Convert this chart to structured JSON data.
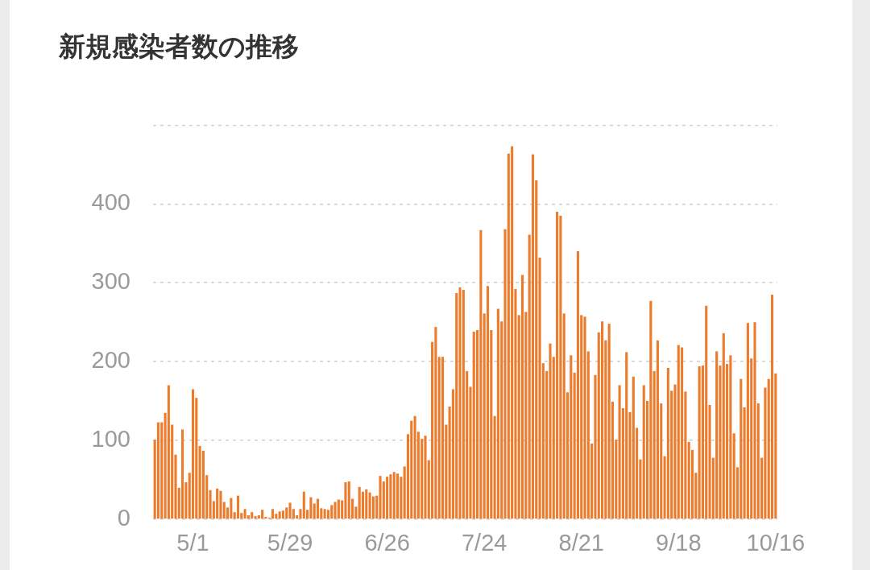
{
  "chart_data": {
    "type": "bar",
    "title": "新規感染者数の推移",
    "categories": [
      null,
      null,
      null,
      null,
      null,
      null,
      null,
      null,
      null,
      null,
      null,
      "5/1",
      null,
      null,
      null,
      null,
      null,
      null,
      null,
      null,
      null,
      null,
      null,
      null,
      null,
      null,
      null,
      null,
      null,
      null,
      null,
      null,
      null,
      null,
      null,
      null,
      null,
      null,
      null,
      "5/29",
      null,
      null,
      null,
      null,
      null,
      null,
      null,
      null,
      null,
      null,
      null,
      null,
      null,
      null,
      null,
      null,
      null,
      null,
      null,
      null,
      null,
      null,
      null,
      null,
      null,
      null,
      null,
      "6/26",
      null,
      null,
      null,
      null,
      null,
      null,
      null,
      null,
      null,
      null,
      null,
      null,
      null,
      null,
      null,
      null,
      null,
      null,
      null,
      null,
      null,
      null,
      null,
      null,
      null,
      null,
      null,
      "7/24",
      null,
      null,
      null,
      null,
      null,
      null,
      null,
      null,
      null,
      null,
      null,
      null,
      null,
      null,
      null,
      null,
      null,
      null,
      null,
      null,
      null,
      null,
      null,
      null,
      null,
      null,
      null,
      "8/21",
      null,
      null,
      null,
      null,
      null,
      null,
      null,
      null,
      null,
      null,
      null,
      null,
      null,
      null,
      null,
      null,
      null,
      null,
      null,
      null,
      null,
      null,
      null,
      null,
      null,
      null,
      null,
      "9/18",
      null,
      null,
      null,
      null,
      null,
      null,
      null,
      null,
      null,
      null,
      null,
      null,
      null,
      null,
      null,
      null,
      null,
      null,
      null,
      null,
      null,
      null,
      null,
      null,
      null,
      null,
      null,
      "10/16"
    ],
    "values": [
      101,
      123,
      123,
      135,
      170,
      120,
      82,
      40,
      114,
      47,
      59,
      165,
      154,
      93,
      87,
      56,
      37,
      23,
      39,
      36,
      22,
      15,
      27,
      9,
      30,
      8,
      13,
      5,
      9,
      4,
      5,
      12,
      3,
      2,
      13,
      7,
      10,
      11,
      15,
      21,
      13,
      5,
      13,
      35,
      12,
      28,
      20,
      26,
      14,
      13,
      12,
      18,
      22,
      25,
      24,
      47,
      48,
      26,
      16,
      41,
      35,
      38,
      34,
      29,
      30,
      55,
      48,
      54,
      57,
      60,
      58,
      54,
      67,
      108,
      125,
      131,
      111,
      102,
      106,
      75,
      225,
      244,
      206,
      206,
      120,
      143,
      165,
      287,
      294,
      291,
      188,
      168,
      238,
      240,
      367,
      261,
      296,
      240,
      131,
      267,
      251,
      368,
      464,
      473,
      292,
      259,
      310,
      263,
      361,
      463,
      430,
      332,
      198,
      188,
      223,
      206,
      390,
      385,
      261,
      161,
      208,
      186,
      340,
      259,
      257,
      213,
      96,
      183,
      237,
      251,
      227,
      248,
      149,
      101,
      170,
      141,
      212,
      136,
      181,
      116,
      76,
      170,
      150,
      277,
      188,
      227,
      147,
      80,
      192,
      163,
      171,
      221,
      218,
      162,
      98,
      88,
      59,
      194,
      195,
      271,
      145,
      78,
      213,
      195,
      236,
      197,
      208,
      109,
      66,
      178,
      142,
      249,
      204,
      250,
      147,
      78,
      167,
      178,
      285,
      185
    ],
    "color": "#ec7b2c",
    "ylim": [
      0,
      500
    ],
    "yticks": [
      0,
      100,
      200,
      300,
      400,
      {
        "value": 500,
        "label": null
      }
    ],
    "grid": "y"
  }
}
